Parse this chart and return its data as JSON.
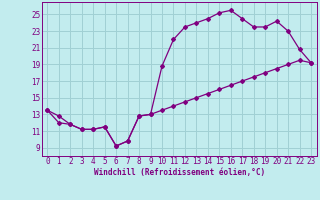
{
  "xlabel": "Windchill (Refroidissement éolien,°C)",
  "background_color": "#c2ecee",
  "grid_color": "#a0d0d4",
  "line_color": "#800080",
  "spine_color": "#800080",
  "xlim": [
    -0.5,
    23.5
  ],
  "ylim": [
    8.0,
    26.5
  ],
  "xticks": [
    0,
    1,
    2,
    3,
    4,
    5,
    6,
    7,
    8,
    9,
    10,
    11,
    12,
    13,
    14,
    15,
    16,
    17,
    18,
    19,
    20,
    21,
    22,
    23
  ],
  "yticks": [
    9,
    11,
    13,
    15,
    17,
    19,
    21,
    23,
    25
  ],
  "line1_x": [
    0,
    1,
    2,
    3,
    4,
    5,
    6,
    7,
    8,
    9,
    10,
    11,
    12,
    13,
    14,
    15,
    16,
    17,
    18,
    19,
    20,
    21,
    22,
    23
  ],
  "line1_y": [
    13.5,
    12.8,
    11.8,
    11.2,
    11.2,
    11.5,
    9.2,
    9.8,
    12.8,
    13.0,
    18.8,
    22.0,
    23.5,
    24.0,
    24.5,
    25.2,
    25.5,
    24.5,
    23.5,
    23.5,
    24.2,
    23.0,
    20.8,
    19.2
  ],
  "line2_x": [
    0,
    1,
    2,
    3,
    4,
    5,
    6,
    7,
    8,
    9,
    10,
    11,
    12,
    13,
    14,
    15,
    16,
    17,
    18,
    19,
    20,
    21,
    22,
    23
  ],
  "line2_y": [
    13.5,
    12.0,
    11.8,
    11.2,
    11.2,
    11.5,
    9.2,
    9.8,
    12.8,
    13.0,
    13.5,
    14.0,
    14.5,
    15.0,
    15.5,
    16.0,
    16.5,
    17.0,
    17.5,
    18.0,
    18.5,
    19.0,
    19.5,
    19.2
  ],
  "xlabel_fontsize": 5.5,
  "tick_fontsize": 5.5,
  "marker": "D",
  "markersize": 2.0,
  "linewidth": 0.9
}
